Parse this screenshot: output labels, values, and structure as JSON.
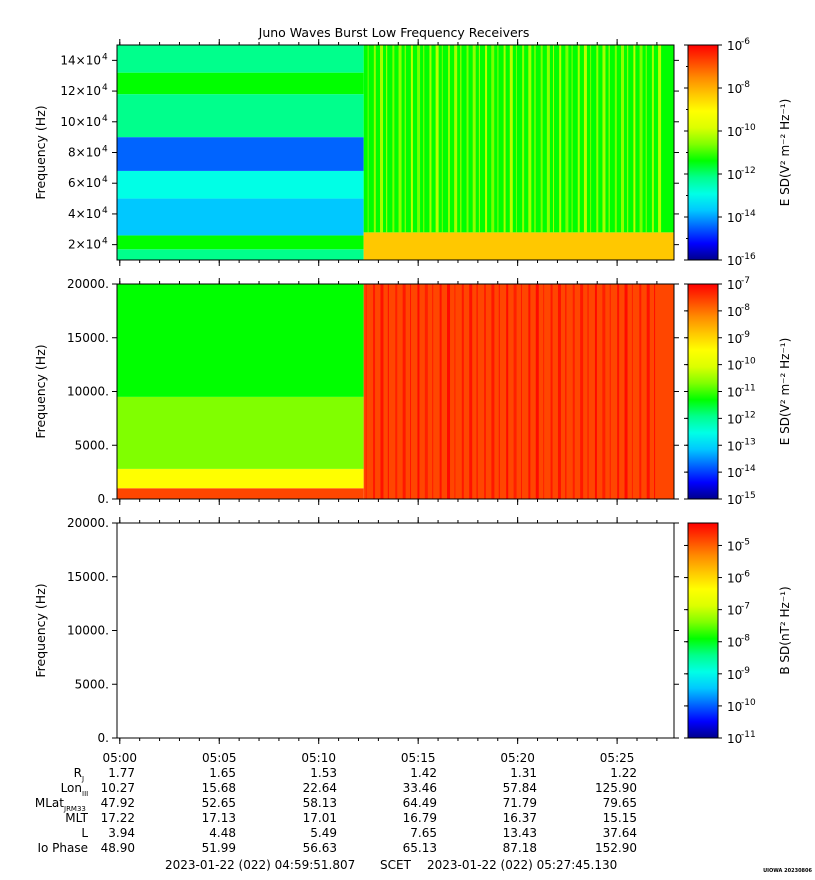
{
  "title": "Juno Waves Burst Low Frequency Receivers",
  "footer": {
    "start": "2023-01-22 (022) 04:59:51.807",
    "mid": "SCET",
    "end": "2023-01-22 (022) 05:27:45.130",
    "stamp": "UIOWA 20230806"
  },
  "colors": {
    "scale": [
      "#00008c",
      "#0000ff",
      "#0064ff",
      "#00c8ff",
      "#00ffe6",
      "#00ff8c",
      "#00ff00",
      "#80ff00",
      "#dcff00",
      "#ffff00",
      "#ffc800",
      "#ff8c00",
      "#ff4600",
      "#ff0000"
    ],
    "axis": "#000000"
  },
  "time_axis": {
    "range_min": [
      0,
      28
    ],
    "ticks": [
      {
        "label": "05:00",
        "t": 0.14
      },
      {
        "label": "05:05",
        "t": 5.14
      },
      {
        "label": "05:10",
        "t": 10.14
      },
      {
        "label": "05:15",
        "t": 15.14
      },
      {
        "label": "05:20",
        "t": 20.14
      },
      {
        "label": "05:25",
        "t": 25.14
      }
    ]
  },
  "ephemeris": {
    "rows": [
      {
        "label": "R",
        "sub": "J",
        "values": [
          "1.77",
          "1.65",
          "1.53",
          "1.42",
          "1.31",
          "1.22"
        ]
      },
      {
        "label": "Lon",
        "sub": "III",
        "values": [
          "10.27",
          "15.68",
          "22.64",
          "33.46",
          "57.84",
          "125.90"
        ]
      },
      {
        "label": "MLat",
        "sub": "JRM33",
        "values": [
          "47.92",
          "52.65",
          "58.13",
          "64.49",
          "71.79",
          "79.65"
        ]
      },
      {
        "label": "MLT",
        "sub": "",
        "values": [
          "17.22",
          "17.13",
          "17.01",
          "16.79",
          "16.37",
          "15.15"
        ]
      },
      {
        "label": "L",
        "sub": "",
        "values": [
          "3.94",
          "4.48",
          "5.49",
          "7.65",
          "13.43",
          "37.64"
        ]
      },
      {
        "label": "Io Phase",
        "sub": "",
        "values": [
          "48.90",
          "51.99",
          "56.63",
          "65.13",
          "87.18",
          "152.90"
        ]
      }
    ]
  },
  "chart_data": [
    {
      "type": "heatmap",
      "name": "panel-1",
      "ylabel": "Frequency (Hz)",
      "ylim": [
        10000,
        150000
      ],
      "yticks": [
        {
          "v": 20000,
          "label": "2×10",
          "exp": "4"
        },
        {
          "v": 40000,
          "label": "4×10",
          "exp": "4"
        },
        {
          "v": 60000,
          "label": "6×10",
          "exp": "4"
        },
        {
          "v": 80000,
          "label": "8×10",
          "exp": "4"
        },
        {
          "v": 100000,
          "label": "10×10",
          "exp": "4"
        },
        {
          "v": 120000,
          "label": "12×10",
          "exp": "4"
        },
        {
          "v": 140000,
          "label": "14×10",
          "exp": "4"
        }
      ],
      "colorbar": {
        "label": "E SD(V² m⁻² Hz⁻¹)",
        "log_min": -16,
        "log_max": -6,
        "ticks": [
          {
            "exp": "-6",
            "v": -6
          },
          {
            "exp": "-8",
            "v": -8
          },
          {
            "exp": "-10",
            "v": -10
          },
          {
            "exp": "-12",
            "v": -12
          },
          {
            "exp": "-14",
            "v": -14
          },
          {
            "exp": "-16",
            "v": -16
          }
        ]
      },
      "regions": [
        {
          "t": [
            0,
            12.4
          ],
          "f": [
            10000,
            17000
          ],
          "level": -12.0
        },
        {
          "t": [
            0,
            12.4
          ],
          "f": [
            17000,
            26000
          ],
          "level": -11.4
        },
        {
          "t": [
            0,
            12.4
          ],
          "f": [
            26000,
            50000
          ],
          "level": -13.6
        },
        {
          "t": [
            0,
            12.4
          ],
          "f": [
            50000,
            68000
          ],
          "level": -12.9
        },
        {
          "t": [
            0,
            12.4
          ],
          "f": [
            68000,
            90000
          ],
          "level": -14.2
        },
        {
          "t": [
            0,
            12.4
          ],
          "f": [
            90000,
            118000
          ],
          "level": -12.3
        },
        {
          "t": [
            0,
            12.4
          ],
          "f": [
            118000,
            132000
          ],
          "level": -11.3
        },
        {
          "t": [
            0,
            12.4
          ],
          "f": [
            132000,
            150000
          ],
          "level": -12.3
        },
        {
          "t": [
            12.4,
            28
          ],
          "f": [
            10000,
            28000
          ],
          "level": -8.6
        },
        {
          "t": [
            12.4,
            28
          ],
          "f": [
            28000,
            150000
          ],
          "level": -11.6
        }
      ],
      "stripes": {
        "t": [
          12.6,
          27.2
        ],
        "f": [
          28000,
          150000
        ],
        "count": 48,
        "level": -10.0
      }
    },
    {
      "type": "heatmap",
      "name": "panel-2",
      "ylabel": "Frequency (Hz)",
      "ylim": [
        0,
        20000
      ],
      "yticks": [
        {
          "v": 0,
          "label": "0."
        },
        {
          "v": 5000,
          "label": "5000."
        },
        {
          "v": 10000,
          "label": "10000."
        },
        {
          "v": 15000,
          "label": "15000."
        },
        {
          "v": 20000,
          "label": "20000."
        }
      ],
      "colorbar": {
        "label": "E SD(V² m⁻² Hz⁻¹)",
        "log_min": -15,
        "log_max": -7,
        "ticks": [
          {
            "exp": "-7",
            "v": -7
          },
          {
            "exp": "-8",
            "v": -8
          },
          {
            "exp": "-9",
            "v": -9
          },
          {
            "exp": "-10",
            "v": -10
          },
          {
            "exp": "-11",
            "v": -11
          },
          {
            "exp": "-12",
            "v": -12
          },
          {
            "exp": "-13",
            "v": -13
          },
          {
            "exp": "-14",
            "v": -14
          },
          {
            "exp": "-15",
            "v": -15
          }
        ]
      },
      "regions": [
        {
          "t": [
            0,
            12.4
          ],
          "f": [
            0,
            1000
          ],
          "level": -7.6
        },
        {
          "t": [
            0,
            12.4
          ],
          "f": [
            1000,
            2800
          ],
          "level": -9.3
        },
        {
          "t": [
            0,
            12.4
          ],
          "f": [
            2800,
            9500
          ],
          "level": -10.9
        },
        {
          "t": [
            0,
            12.4
          ],
          "f": [
            9500,
            20000
          ],
          "level": -11.4
        },
        {
          "t": [
            12.4,
            28
          ],
          "f": [
            0,
            20000
          ],
          "level": -7.5
        }
      ],
      "stripes": {
        "t": [
          12.5,
          27.0
        ],
        "f": [
          0,
          20000
        ],
        "count": 40,
        "level": -7.1
      }
    },
    {
      "type": "heatmap",
      "name": "panel-3",
      "ylabel": "Frequency (Hz)",
      "ylim": [
        0,
        20000
      ],
      "yticks": [
        {
          "v": 0,
          "label": "0."
        },
        {
          "v": 5000,
          "label": "5000."
        },
        {
          "v": 10000,
          "label": "10000."
        },
        {
          "v": 15000,
          "label": "15000."
        },
        {
          "v": 20000,
          "label": "20000."
        }
      ],
      "colorbar": {
        "label": "B SD(nT² Hz⁻¹)",
        "log_min": -11,
        "log_max": -4.3,
        "ticks": [
          {
            "exp": "-5",
            "v": -5
          },
          {
            "exp": "-6",
            "v": -6
          },
          {
            "exp": "-7",
            "v": -7
          },
          {
            "exp": "-8",
            "v": -8
          },
          {
            "exp": "-9",
            "v": -9
          },
          {
            "exp": "-10",
            "v": -10
          },
          {
            "exp": "-11",
            "v": -11
          }
        ]
      },
      "regions": [],
      "stripes": null
    }
  ]
}
